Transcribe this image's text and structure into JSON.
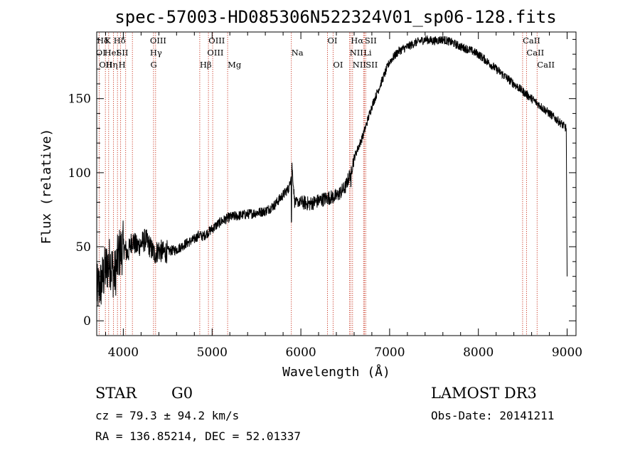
{
  "chart_data": {
    "type": "line",
    "title": "spec-57003-HD085306N522324V01_sp06-128.fits",
    "xlabel": "Wavelength (Å)",
    "ylabel": "Flux (relative)",
    "xlim": [
      3700,
      9100
    ],
    "ylim": [
      -10,
      195
    ],
    "xticks": [
      4000,
      5000,
      6000,
      7000,
      8000,
      9000
    ],
    "yticks": [
      0,
      50,
      100,
      150
    ],
    "series": [
      {
        "name": "flux",
        "x": [
          3700,
          3750,
          3800,
          3850,
          3900,
          3950,
          4000,
          4050,
          4100,
          4150,
          4200,
          4250,
          4300,
          4350,
          4400,
          4450,
          4500,
          4600,
          4700,
          4800,
          4850,
          4900,
          5000,
          5100,
          5200,
          5300,
          5400,
          5500,
          5600,
          5700,
          5800,
          5870,
          5900,
          5930,
          6000,
          6100,
          6200,
          6300,
          6400,
          6500,
          6560,
          6600,
          6700,
          6800,
          6900,
          7000,
          7100,
          7200,
          7300,
          7400,
          7500,
          7600,
          7700,
          7800,
          7900,
          8000,
          8100,
          8200,
          8300,
          8400,
          8500,
          8600,
          8700,
          8800,
          8900,
          8990,
          9000
        ],
        "y": [
          20,
          25,
          35,
          40,
          30,
          45,
          50,
          45,
          55,
          50,
          52,
          55,
          50,
          45,
          48,
          46,
          47,
          48,
          52,
          55,
          58,
          57,
          62,
          67,
          70,
          71,
          72,
          73,
          74,
          78,
          85,
          90,
          105,
          80,
          80,
          79,
          81,
          83,
          84,
          90,
          100,
          110,
          125,
          145,
          160,
          175,
          182,
          185,
          188,
          190,
          189,
          190,
          188,
          185,
          183,
          180,
          175,
          170,
          165,
          160,
          155,
          150,
          145,
          140,
          135,
          130,
          30
        ]
      }
    ],
    "lines": [
      {
        "label": "Hδ",
        "x": 3700,
        "row": 0
      },
      {
        "label": "K",
        "x": 3790,
        "row": 0
      },
      {
        "label": "Hδ",
        "x": 3890,
        "row": 0
      },
      {
        "label": "OIII",
        "x": 4300,
        "row": 0
      },
      {
        "label": "OIII",
        "x": 4960,
        "row": 0
      },
      {
        "label": "OI",
        "x": 6300,
        "row": 0
      },
      {
        "label": "Hα",
        "x": 6563,
        "row": 0
      },
      {
        "label": "SII",
        "x": 6720,
        "row": 0
      },
      {
        "label": "CaII",
        "x": 8500,
        "row": 0
      },
      {
        "label": "OI",
        "x": 3690,
        "row": 1
      },
      {
        "label": "HeI",
        "x": 3785,
        "row": 1
      },
      {
        "label": "SII",
        "x": 3920,
        "row": 1
      },
      {
        "label": "Hγ",
        "x": 4300,
        "row": 1
      },
      {
        "label": "OIII",
        "x": 4945,
        "row": 1
      },
      {
        "label": "Na",
        "x": 5893,
        "row": 1
      },
      {
        "label": "NII",
        "x": 6550,
        "row": 1
      },
      {
        "label": "Li",
        "x": 6707,
        "row": 1
      },
      {
        "label": "CaII",
        "x": 8542,
        "row": 1
      },
      {
        "label": "OII",
        "x": 3727,
        "row": 2
      },
      {
        "label": "Hη",
        "x": 3800,
        "row": 2
      },
      {
        "label": "H",
        "x": 3945,
        "row": 2
      },
      {
        "label": "G",
        "x": 4305,
        "row": 2
      },
      {
        "label": "Hβ",
        "x": 4861,
        "row": 2
      },
      {
        "label": "Mg",
        "x": 5175,
        "row": 2
      },
      {
        "label": "OI",
        "x": 6363,
        "row": 2
      },
      {
        "label": "NII",
        "x": 6583,
        "row": 2
      },
      {
        "label": "SII",
        "x": 6731,
        "row": 2
      },
      {
        "label": "CaII",
        "x": 8662,
        "row": 2
      }
    ],
    "line_positions": [
      3727,
      3798,
      3835,
      3889,
      3934,
      3969,
      4026,
      4102,
      4340,
      4363,
      4861,
      4959,
      5007,
      5175,
      5893,
      6300,
      6363,
      6548,
      6563,
      6583,
      6707,
      6717,
      6731,
      8498,
      8542,
      8662
    ]
  },
  "info": {
    "object_class": "STAR",
    "subclass": "G0",
    "survey": "LAMOST DR3",
    "cz": "cz = 79.3 ± 94.2 km/s",
    "obs_date": "Obs-Date: 20141211",
    "coords": "RA = 136.85214, DEC =  52.01337"
  }
}
